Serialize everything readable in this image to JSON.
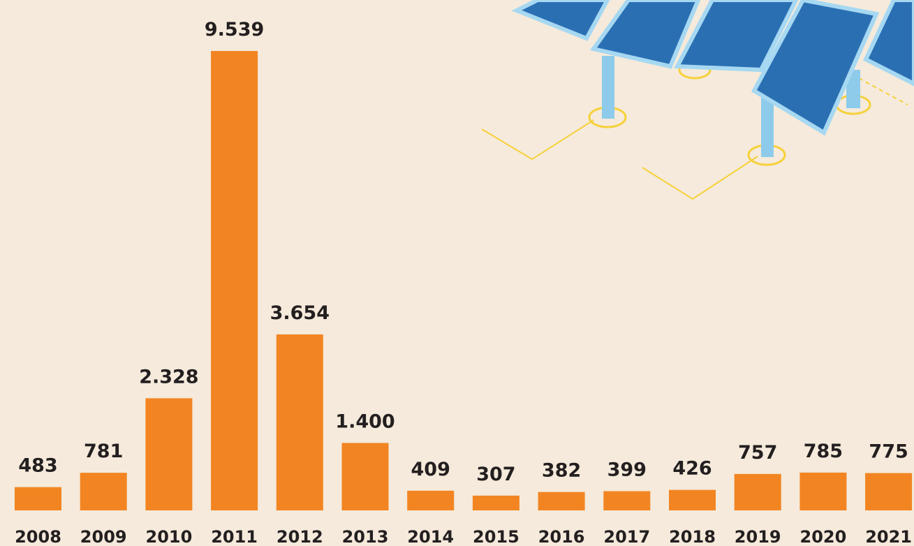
{
  "chart_data": {
    "type": "bar",
    "categories": [
      "2008",
      "2009",
      "2010",
      "2011",
      "2012",
      "2013",
      "2014",
      "2015",
      "2016",
      "2017",
      "2018",
      "2019",
      "2020",
      "2021"
    ],
    "values": [
      483,
      781,
      2328,
      9539,
      3654,
      1400,
      409,
      307,
      382,
      399,
      426,
      757,
      785,
      775
    ],
    "value_labels": [
      "483",
      "781",
      "2.328",
      "9.539",
      "3.654",
      "1.400",
      "409",
      "307",
      "382",
      "399",
      "426",
      "757",
      "785",
      "775"
    ],
    "color": "#f28522"
  }
}
